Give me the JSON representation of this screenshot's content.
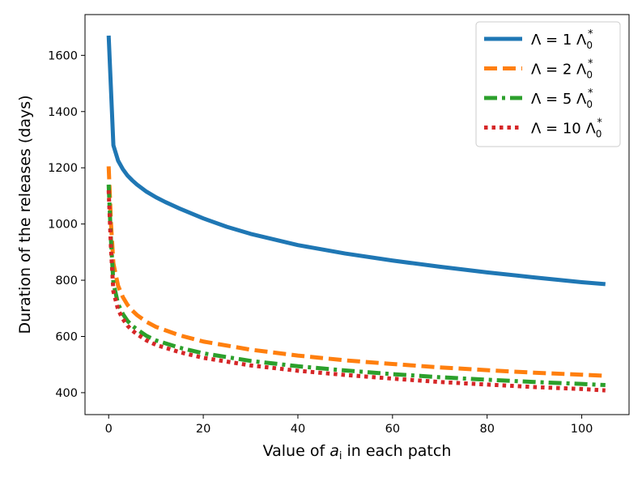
{
  "chart_data": {
    "type": "line",
    "xlabel": {
      "pre": "Value of ",
      "var": "a",
      "sub": "i",
      "post": " in each patch"
    },
    "ylabel": "Duration of the releases (days)",
    "xlim": [
      -5,
      110
    ],
    "ylim": [
      322,
      1745
    ],
    "x_ticks": [
      0,
      20,
      40,
      60,
      80,
      100
    ],
    "y_ticks": [
      400,
      600,
      800,
      1000,
      1200,
      1400,
      1600
    ],
    "grid": false,
    "legend_position": "top-right",
    "series": [
      {
        "name": "Λ = 1 Λ₀*",
        "legend": {
          "coef": "1"
        },
        "color": "#1f77b4",
        "style": "solid",
        "x": [
          0,
          1,
          2,
          3,
          4,
          5,
          6,
          8,
          10,
          12,
          15,
          20,
          25,
          30,
          40,
          50,
          60,
          70,
          80,
          90,
          100,
          105
        ],
        "values": [
          1670,
          1280,
          1225,
          1195,
          1172,
          1155,
          1140,
          1115,
          1095,
          1078,
          1055,
          1020,
          990,
          965,
          925,
          895,
          870,
          848,
          828,
          810,
          793,
          786
        ]
      },
      {
        "name": "Λ = 2 Λ₀*",
        "legend": {
          "coef": "2"
        },
        "color": "#ff7f0e",
        "style": "dashed",
        "x": [
          0,
          0.5,
          1,
          2,
          3,
          4,
          5,
          6,
          8,
          10,
          15,
          20,
          30,
          40,
          50,
          60,
          70,
          80,
          90,
          100,
          105
        ],
        "values": [
          1205,
          1000,
          860,
          780,
          740,
          712,
          692,
          676,
          652,
          634,
          604,
          582,
          553,
          532,
          515,
          502,
          490,
          480,
          471,
          464,
          460
        ]
      },
      {
        "name": "Λ = 5 Λ₀*",
        "legend": {
          "coef": "5"
        },
        "color": "#2ca02c",
        "style": "dashdot",
        "x": [
          0,
          0.5,
          1,
          2,
          3,
          4,
          5,
          6,
          8,
          10,
          15,
          20,
          30,
          40,
          50,
          60,
          70,
          80,
          90,
          100,
          105
        ],
        "values": [
          1140,
          940,
          790,
          715,
          680,
          655,
          638,
          625,
          602,
          586,
          560,
          540,
          513,
          494,
          479,
          466,
          455,
          446,
          438,
          431,
          427
        ]
      },
      {
        "name": "Λ = 10 Λ₀*",
        "legend": {
          "coef": "10"
        },
        "color": "#d62728",
        "style": "dotted",
        "x": [
          0,
          0.5,
          1,
          2,
          3,
          4,
          5,
          6,
          8,
          10,
          15,
          20,
          30,
          40,
          50,
          60,
          70,
          80,
          90,
          100,
          105
        ],
        "values": [
          1120,
          910,
          760,
          695,
          662,
          638,
          621,
          608,
          586,
          570,
          544,
          524,
          497,
          478,
          463,
          450,
          438,
          429,
          420,
          413,
          408
        ]
      }
    ]
  }
}
